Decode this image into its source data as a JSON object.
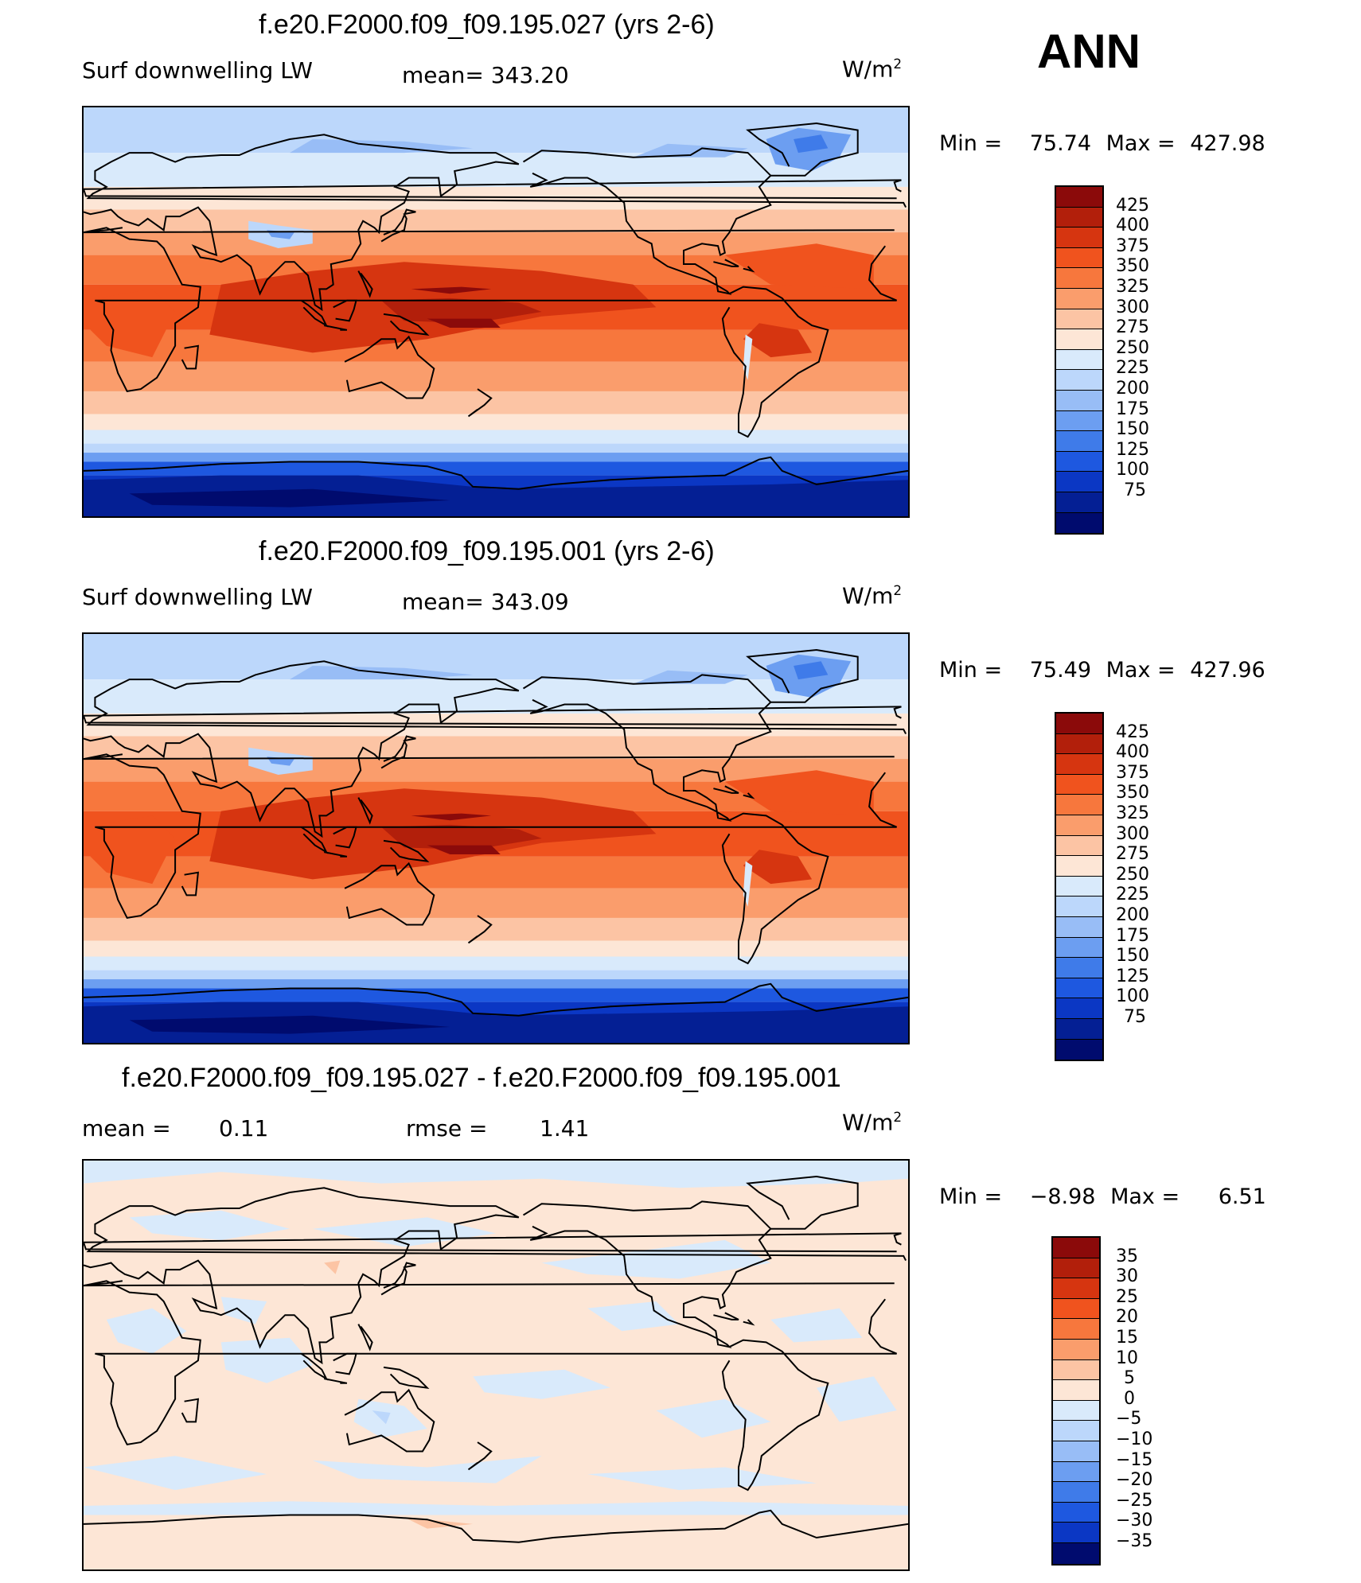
{
  "season": "ANN",
  "units_base": "W/m",
  "units_exp": "2",
  "panels": [
    {
      "title": "f.e20.F2000.f09_f09.195.027 (yrs 2-6)",
      "left_label": "Surf downwelling LW",
      "center_label": "mean= 343.20",
      "min_label": "Min =",
      "min_value": "75.74",
      "max_label": "Max =",
      "max_value": "427.98",
      "levels": [
        "425",
        "400",
        "375",
        "350",
        "325",
        "300",
        "275",
        "250",
        "225",
        "200",
        "175",
        "150",
        "125",
        "100",
        "75"
      ],
      "colors": [
        "#8b0a0a",
        "#b21f0b",
        "#d63510",
        "#f0531e",
        "#f7773d",
        "#fa9d6c",
        "#fcc4a4",
        "#fde6d6",
        "#d9eafb",
        "#bcd7fb",
        "#98bdf6",
        "#6c9ef1",
        "#3f7be9",
        "#1e58e0",
        "#0b37c4",
        "#041f94",
        "#000b6e"
      ],
      "mean_value": 343.2
    },
    {
      "title": "f.e20.F2000.f09_f09.195.001 (yrs 2-6)",
      "left_label": "Surf downwelling LW",
      "center_label": "mean= 343.09",
      "min_label": "Min =",
      "min_value": "75.49",
      "max_label": "Max =",
      "max_value": "427.96",
      "levels": [
        "425",
        "400",
        "375",
        "350",
        "325",
        "300",
        "275",
        "250",
        "225",
        "200",
        "175",
        "150",
        "125",
        "100",
        "75"
      ],
      "colors": [
        "#8b0a0a",
        "#b21f0b",
        "#d63510",
        "#f0531e",
        "#f7773d",
        "#fa9d6c",
        "#fcc4a4",
        "#fde6d6",
        "#d9eafb",
        "#bcd7fb",
        "#98bdf6",
        "#6c9ef1",
        "#3f7be9",
        "#1e58e0",
        "#0b37c4",
        "#041f94",
        "#000b6e"
      ],
      "mean_value": 343.09
    },
    {
      "title": "f.e20.F2000.f09_f09.195.027 - f.e20.F2000.f09_f09.195.001",
      "left_label": "mean =",
      "left_value": "0.11",
      "center_label": "rmse =",
      "center_value": "1.41",
      "min_label": "Min =",
      "min_value": "−8.98",
      "max_label": "Max =",
      "max_value": "6.51",
      "levels": [
        "35",
        "30",
        "25",
        "20",
        "15",
        "10",
        "5",
        "0",
        "−5",
        "−10",
        "−15",
        "−20",
        "−25",
        "−30",
        "−35"
      ],
      "colors": [
        "#8b0a0a",
        "#b21f0b",
        "#d63510",
        "#f0531e",
        "#f7773d",
        "#fa9d6c",
        "#fcc4a4",
        "#fde6d6",
        "#d9eafb",
        "#bcd7fb",
        "#98bdf6",
        "#6c9ef1",
        "#3f7be9",
        "#1e58e0",
        "#0b37c4",
        "#000b6e"
      ],
      "mean_value": 0.11,
      "rmse_value": 1.41
    }
  ]
}
